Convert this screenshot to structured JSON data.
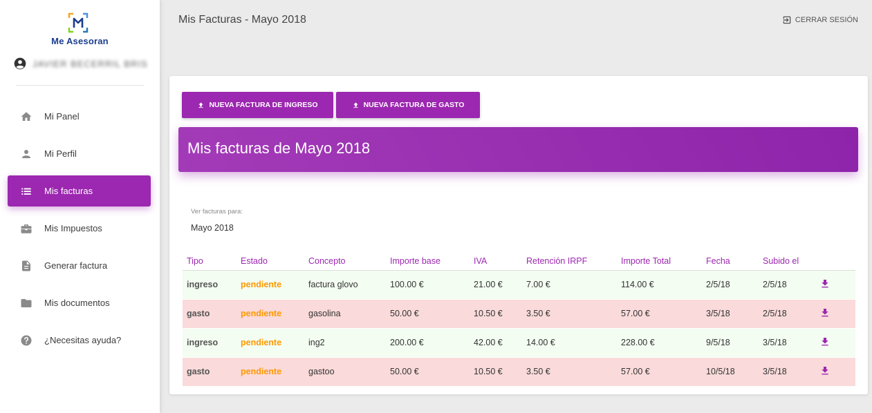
{
  "brand": {
    "name": "Me Asesoran",
    "accent": "#9c27b0"
  },
  "user": {
    "name": "JAVIER BECERRIL BRIS"
  },
  "sidebar": {
    "items": [
      {
        "label": "Mi Panel",
        "icon": "home-icon"
      },
      {
        "label": "Mi Perfil",
        "icon": "person-icon"
      },
      {
        "label": "Mis facturas",
        "icon": "list-icon",
        "active": true
      },
      {
        "label": "Mis Impuestos",
        "icon": "briefcase-icon"
      },
      {
        "label": "Generar factura",
        "icon": "document-icon"
      },
      {
        "label": "Mis documentos",
        "icon": "folder-icon"
      },
      {
        "label": "¿Necesitas ayuda?",
        "icon": "help-icon"
      }
    ]
  },
  "header": {
    "title": "Mis Facturas - Mayo 2018",
    "logout_label": "CERRAR SESIÓN"
  },
  "actions": {
    "new_income_label": "NUEVA FACTURA DE INGRESO",
    "new_expense_label": "NUEVA FACTURA DE GASTO"
  },
  "banner": {
    "title": "Mis facturas de Mayo 2018"
  },
  "filter": {
    "label": "Ver facturas para:",
    "value": "Mayo 2018"
  },
  "table": {
    "columns": [
      "Tipo",
      "Estado",
      "Concepto",
      "Importe base",
      "IVA",
      "Retención IRPF",
      "Importe Total",
      "Fecha",
      "Subido el"
    ],
    "rows": [
      {
        "tipo": "ingreso",
        "estado": "pendiente",
        "concepto": "factura glovo",
        "base": "100.00 €",
        "iva": "21.00 €",
        "irpf": "7.00 €",
        "total": "114.00 €",
        "fecha": "2/5/18",
        "subido": "2/5/18"
      },
      {
        "tipo": "gasto",
        "estado": "pendiente",
        "concepto": "gasolina",
        "base": "50.00 €",
        "iva": "10.50 €",
        "irpf": "3.50 €",
        "total": "57.00 €",
        "fecha": "3/5/18",
        "subido": "2/5/18"
      },
      {
        "tipo": "ingreso",
        "estado": "pendiente",
        "concepto": "ing2",
        "base": "200.00 €",
        "iva": "42.00 €",
        "irpf": "14.00 €",
        "total": "228.00 €",
        "fecha": "9/5/18",
        "subido": "3/5/18"
      },
      {
        "tipo": "gasto",
        "estado": "pendiente",
        "concepto": "gastoo",
        "base": "50.00 €",
        "iva": "10.50 €",
        "irpf": "3.50 €",
        "total": "57.00 €",
        "fecha": "10/5/18",
        "subido": "3/5/18"
      }
    ]
  }
}
